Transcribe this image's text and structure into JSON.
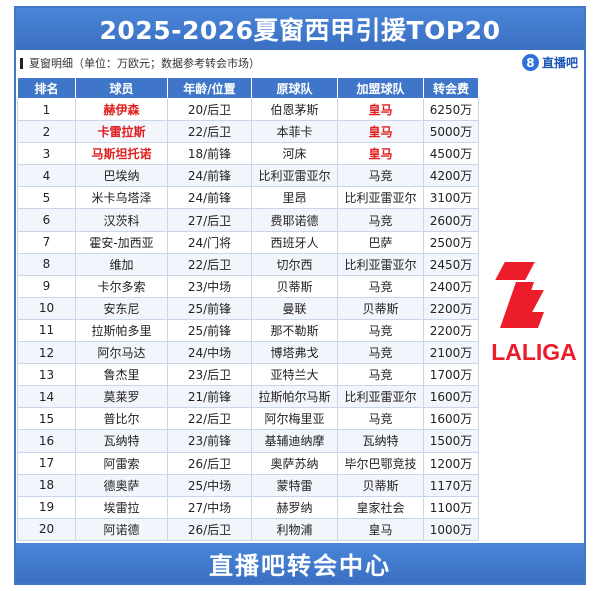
{
  "title": "2025-2026夏窗西甲引援TOP20",
  "subtitle": "夏窗明细（单位：万欧元；数据参考转会市场）",
  "brand": {
    "badge": "8",
    "name": "直播吧"
  },
  "colors": {
    "accent": "#3f76c9",
    "highlight": "#e02020"
  },
  "table": {
    "headers": [
      "排名",
      "球员",
      "年龄/位置",
      "原球队",
      "加盟球队",
      "转会费"
    ],
    "rows": [
      {
        "rank": "1",
        "player": "赫伊森",
        "age_pos": "20/后卫",
        "from": "伯恩茅斯",
        "to": "皇马",
        "fee": "6250万",
        "highlight": true
      },
      {
        "rank": "2",
        "player": "卡雷拉斯",
        "age_pos": "22/后卫",
        "from": "本菲卡",
        "to": "皇马",
        "fee": "5000万",
        "highlight": true
      },
      {
        "rank": "3",
        "player": "马斯坦托诺",
        "age_pos": "18/前锋",
        "from": "河床",
        "to": "皇马",
        "fee": "4500万",
        "highlight": true
      },
      {
        "rank": "4",
        "player": "巴埃纳",
        "age_pos": "24/前锋",
        "from": "比利亚雷亚尔",
        "to": "马竞",
        "fee": "4200万",
        "highlight": false
      },
      {
        "rank": "5",
        "player": "米卡乌塔泽",
        "age_pos": "24/前锋",
        "from": "里昂",
        "to": "比利亚雷亚尔",
        "fee": "3100万",
        "highlight": false
      },
      {
        "rank": "6",
        "player": "汉茨科",
        "age_pos": "27/后卫",
        "from": "费耶诺德",
        "to": "马竞",
        "fee": "2600万",
        "highlight": false
      },
      {
        "rank": "7",
        "player": "霍安-加西亚",
        "age_pos": "24/门将",
        "from": "西班牙人",
        "to": "巴萨",
        "fee": "2500万",
        "highlight": false
      },
      {
        "rank": "8",
        "player": "维加",
        "age_pos": "22/后卫",
        "from": "切尔西",
        "to": "比利亚雷亚尔",
        "fee": "2450万",
        "highlight": false
      },
      {
        "rank": "9",
        "player": "卡尔多索",
        "age_pos": "23/中场",
        "from": "贝蒂斯",
        "to": "马竞",
        "fee": "2400万",
        "highlight": false
      },
      {
        "rank": "10",
        "player": "安东尼",
        "age_pos": "25/前锋",
        "from": "曼联",
        "to": "贝蒂斯",
        "fee": "2200万",
        "highlight": false
      },
      {
        "rank": "11",
        "player": "拉斯帕多里",
        "age_pos": "25/前锋",
        "from": "那不勒斯",
        "to": "马竞",
        "fee": "2200万",
        "highlight": false
      },
      {
        "rank": "12",
        "player": "阿尔马达",
        "age_pos": "24/中场",
        "from": "博塔弗戈",
        "to": "马竞",
        "fee": "2100万",
        "highlight": false
      },
      {
        "rank": "13",
        "player": "鲁杰里",
        "age_pos": "23/后卫",
        "from": "亚特兰大",
        "to": "马竞",
        "fee": "1700万",
        "highlight": false
      },
      {
        "rank": "14",
        "player": "莫莱罗",
        "age_pos": "21/前锋",
        "from": "拉斯帕尔马斯",
        "to": "比利亚雷亚尔",
        "fee": "1600万",
        "highlight": false
      },
      {
        "rank": "15",
        "player": "普比尔",
        "age_pos": "22/后卫",
        "from": "阿尔梅里亚",
        "to": "马竞",
        "fee": "1600万",
        "highlight": false
      },
      {
        "rank": "16",
        "player": "瓦纳特",
        "age_pos": "23/前锋",
        "from": "基辅迪纳摩",
        "to": "瓦纳特",
        "fee": "1500万",
        "highlight": false
      },
      {
        "rank": "17",
        "player": "阿雷索",
        "age_pos": "26/后卫",
        "from": "奥萨苏纳",
        "to": "毕尔巴鄂竞技",
        "fee": "1200万",
        "highlight": false
      },
      {
        "rank": "18",
        "player": "德奥萨",
        "age_pos": "25/中场",
        "from": "蒙特雷",
        "to": "贝蒂斯",
        "fee": "1170万",
        "highlight": false
      },
      {
        "rank": "19",
        "player": "埃雷拉",
        "age_pos": "27/中场",
        "from": "赫罗纳",
        "to": "皇家社会",
        "fee": "1100万",
        "highlight": false
      },
      {
        "rank": "20",
        "player": "阿诺德",
        "age_pos": "26/后卫",
        "from": "利物浦",
        "to": "皇马",
        "fee": "1000万",
        "highlight": false
      }
    ]
  },
  "logo": {
    "text": "LALIGA",
    "icon": "laliga-logo"
  },
  "footer": "直播吧转会中心"
}
